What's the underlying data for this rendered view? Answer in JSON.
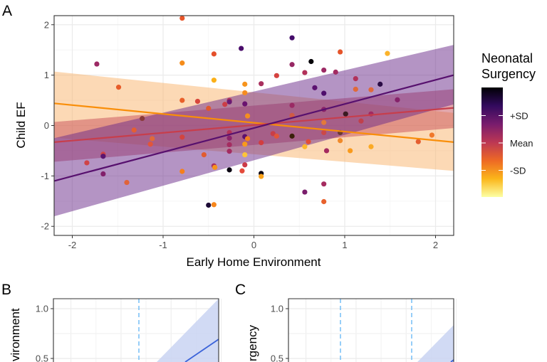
{
  "chart_data": [
    {
      "panel": "A",
      "type": "scatter",
      "xlabel": "Early Home Environment",
      "ylabel": "Child EF",
      "xlim": [
        -2.2,
        2.2
      ],
      "ylim": [
        -2.18,
        2.18
      ],
      "xticks": [
        -2,
        -1,
        0,
        1,
        2
      ],
      "yticks": [
        -2,
        -1,
        0,
        1,
        2
      ],
      "grid": true,
      "legend": {
        "title_lines": [
          "Neonatal",
          "Surgency"
        ],
        "type": "colorbar",
        "placement": "right",
        "labels": [
          "+SD",
          "Mean",
          "-SD"
        ],
        "label_positions": [
          1,
          0,
          -1
        ],
        "gradient": [
          "#000004",
          "#320a5e",
          "#781c6d",
          "#bc3754",
          "#ed6925",
          "#fbb61a",
          "#fcffa4"
        ]
      },
      "regression_lines": [
        {
          "level": "-SD",
          "color": "#f98e09",
          "fill": "#f9b46b",
          "x": [
            -2.2,
            2.2
          ],
          "y": [
            0.44,
            -0.33
          ],
          "ci_low": [
            -0.24,
            -0.9
          ],
          "ci_high": [
            1.07,
            0.25
          ]
        },
        {
          "level": "Mean",
          "color": "#c73e4c",
          "fill": "#c8505a",
          "x": [
            -2.2,
            2.2
          ],
          "y": [
            -0.33,
            0.35
          ],
          "ci_low": [
            -0.72,
            -0.05
          ],
          "ci_high": [
            0.07,
            0.72
          ]
        },
        {
          "level": "+SD",
          "color": "#57106e",
          "fill": "#6a2a8a",
          "x": [
            -2.2,
            2.2
          ],
          "y": [
            -1.1,
            1.0
          ],
          "ci_low": [
            -1.8,
            0.42
          ],
          "ci_high": [
            -0.25,
            1.6
          ]
        }
      ],
      "points": [
        {
          "x": -0.79,
          "y": 2.13,
          "c": "#e8562a"
        },
        {
          "x": -0.14,
          "y": 1.53,
          "c": "#4a0c6b"
        },
        {
          "x": -0.44,
          "y": 1.42,
          "c": "#e4502b"
        },
        {
          "x": -1.73,
          "y": 1.22,
          "c": "#9c2964"
        },
        {
          "x": -0.79,
          "y": 1.24,
          "c": "#f58c1a"
        },
        {
          "x": -0.44,
          "y": 0.9,
          "c": "#fbb018"
        },
        {
          "x": -0.1,
          "y": 0.82,
          "c": "#f7941d"
        },
        {
          "x": 0.08,
          "y": 0.83,
          "c": "#a8305e"
        },
        {
          "x": -0.1,
          "y": 0.65,
          "c": "#f68c1f"
        },
        {
          "x": -1.49,
          "y": 0.76,
          "c": "#e75c2a"
        },
        {
          "x": -0.79,
          "y": 0.5,
          "c": "#e9602a"
        },
        {
          "x": -0.62,
          "y": 0.48,
          "c": "#d8473c"
        },
        {
          "x": -0.5,
          "y": 0.34,
          "c": "#e0582e"
        },
        {
          "x": -0.32,
          "y": 0.42,
          "c": "#cb3e47"
        },
        {
          "x": -0.27,
          "y": 0.5,
          "c": "#b3355a"
        },
        {
          "x": -0.27,
          "y": 0.47,
          "c": "#6b1a72"
        },
        {
          "x": -0.1,
          "y": 0.43,
          "c": "#6a1270"
        },
        {
          "x": -0.07,
          "y": 0.19,
          "c": "#f58e20"
        },
        {
          "x": -1.23,
          "y": 0.14,
          "c": "#8a3b3b"
        },
        {
          "x": -1.32,
          "y": -0.09,
          "c": "#e55e32"
        },
        {
          "x": -0.79,
          "y": -0.23,
          "c": "#d3443f"
        },
        {
          "x": -0.27,
          "y": -0.14,
          "c": "#b33358"
        },
        {
          "x": -0.27,
          "y": -0.25,
          "c": "#8a236a"
        },
        {
          "x": -0.1,
          "y": -0.22,
          "c": "#5c106e"
        },
        {
          "x": -0.07,
          "y": -0.26,
          "c": "#f2801f"
        },
        {
          "x": -0.1,
          "y": -0.37,
          "c": "#f89a1c"
        },
        {
          "x": 0.08,
          "y": -0.34,
          "c": "#d23e40"
        },
        {
          "x": 0.21,
          "y": -0.16,
          "c": "#c93e48"
        },
        {
          "x": -1.12,
          "y": -0.26,
          "c": "#e06a3a"
        },
        {
          "x": -1.14,
          "y": -0.37,
          "c": "#e2553a"
        },
        {
          "x": -0.27,
          "y": -0.38,
          "c": "#a42c60"
        },
        {
          "x": -0.27,
          "y": -0.51,
          "c": "#a32b61"
        },
        {
          "x": -0.1,
          "y": -0.58,
          "c": "#fcc43a"
        },
        {
          "x": -0.55,
          "y": -0.58,
          "c": "#e15c30"
        },
        {
          "x": -1.66,
          "y": -0.57,
          "c": "#cf4347"
        },
        {
          "x": -1.66,
          "y": -0.61,
          "c": "#5b1470"
        },
        {
          "x": -1.84,
          "y": -0.74,
          "c": "#cf4347"
        },
        {
          "x": -0.44,
          "y": -0.8,
          "c": "#a83060"
        },
        {
          "x": -0.43,
          "y": -0.83,
          "c": "#f7931b"
        },
        {
          "x": -0.1,
          "y": -0.78,
          "c": "#cc3a48"
        },
        {
          "x": -0.27,
          "y": -0.88,
          "c": "#0a0512"
        },
        {
          "x": -0.13,
          "y": -0.9,
          "c": "#e44a3a"
        },
        {
          "x": -0.79,
          "y": -0.91,
          "c": "#f57f1c"
        },
        {
          "x": -1.66,
          "y": -0.96,
          "c": "#82206b"
        },
        {
          "x": 0.08,
          "y": -0.95,
          "c": "#0c0614"
        },
        {
          "x": 0.08,
          "y": -1.01,
          "c": "#fba31a"
        },
        {
          "x": -1.4,
          "y": -1.13,
          "c": "#e0633a"
        },
        {
          "x": -0.5,
          "y": -1.58,
          "c": "#1c0a35"
        },
        {
          "x": -0.44,
          "y": -1.57,
          "c": "#f7861c"
        },
        {
          "x": 0.42,
          "y": 1.74,
          "c": "#440c6a"
        },
        {
          "x": 0.95,
          "y": 1.46,
          "c": "#e5542a"
        },
        {
          "x": 1.47,
          "y": 1.43,
          "c": "#fbb32b"
        },
        {
          "x": 0.63,
          "y": 1.27,
          "c": "#050308"
        },
        {
          "x": 0.42,
          "y": 1.21,
          "c": "#962763"
        },
        {
          "x": 0.56,
          "y": 1.05,
          "c": "#b2325a"
        },
        {
          "x": 0.77,
          "y": 1.1,
          "c": "#9c2964"
        },
        {
          "x": 0.9,
          "y": 1.06,
          "c": "#a32c62"
        },
        {
          "x": 0.25,
          "y": 0.99,
          "c": "#d54340"
        },
        {
          "x": 1.12,
          "y": 0.93,
          "c": "#b1325a"
        },
        {
          "x": 1.39,
          "y": 0.82,
          "c": "#2a0b45"
        },
        {
          "x": 0.67,
          "y": 0.75,
          "c": "#5c1270"
        },
        {
          "x": 1.12,
          "y": 0.72,
          "c": "#e0693a"
        },
        {
          "x": 1.29,
          "y": 0.71,
          "c": "#e0683a"
        },
        {
          "x": 0.77,
          "y": 0.64,
          "c": "#4e0e6c"
        },
        {
          "x": 1.58,
          "y": 0.51,
          "c": "#85226a"
        },
        {
          "x": 0.42,
          "y": 0.4,
          "c": "#9a2a64"
        },
        {
          "x": 0.77,
          "y": 0.32,
          "c": "#8a2369"
        },
        {
          "x": 0.42,
          "y": 0.2,
          "c": "#d05a45"
        },
        {
          "x": 1.01,
          "y": 0.23,
          "c": "#3a1a20"
        },
        {
          "x": 1.29,
          "y": 0.23,
          "c": "#a12a62"
        },
        {
          "x": 0.77,
          "y": 0.06,
          "c": "#e37a3a"
        },
        {
          "x": 1.18,
          "y": 0.09,
          "c": "#c0404c"
        },
        {
          "x": 0.77,
          "y": -0.14,
          "c": "#cc4848"
        },
        {
          "x": 0.95,
          "y": -0.14,
          "c": "#6b3a30"
        },
        {
          "x": 0.42,
          "y": -0.21,
          "c": "#3a200a"
        },
        {
          "x": 0.25,
          "y": -0.21,
          "c": "#e2553a"
        },
        {
          "x": 0.6,
          "y": -0.32,
          "c": "#e24e36"
        },
        {
          "x": 0.95,
          "y": -0.3,
          "c": "#f08a2a"
        },
        {
          "x": 0.56,
          "y": -0.42,
          "c": "#fcb92c"
        },
        {
          "x": 1.29,
          "y": -0.42,
          "c": "#fbaa25"
        },
        {
          "x": 1.06,
          "y": -0.5,
          "c": "#f99a1c"
        },
        {
          "x": 0.8,
          "y": -0.5,
          "c": "#a42a5f"
        },
        {
          "x": 1.81,
          "y": -0.32,
          "c": "#e55e2f"
        },
        {
          "x": 1.96,
          "y": -0.19,
          "c": "#f0782a"
        },
        {
          "x": 0.77,
          "y": -1.16,
          "c": "#a52c60"
        },
        {
          "x": 0.56,
          "y": -1.32,
          "c": "#7a1e6c"
        },
        {
          "x": 0.77,
          "y": -1.51,
          "c": "#e8612c"
        }
      ]
    },
    {
      "panel": "B",
      "type": "line",
      "ylabel_visible": "vironment",
      "yticks": [
        1.0,
        0.5
      ],
      "ytick_labels": [
        "1.0",
        "0.5"
      ],
      "grid": true,
      "dashed_reference_lines": 1
    },
    {
      "panel": "C",
      "type": "line",
      "ylabel_visible": "rgency",
      "yticks": [
        1.0,
        0.5
      ],
      "ytick_labels": [
        "1.0",
        "0.5"
      ],
      "grid": true,
      "dashed_reference_lines": 2
    }
  ],
  "labels": {
    "a": "A",
    "b": "B",
    "c": "C"
  },
  "colors": {
    "line_blue": "#3b63d9",
    "band_blue": "#c9d3f2",
    "dashed_blue": "#5fb4f5",
    "grid": "#ebebeb",
    "panel_border": "#333333"
  }
}
